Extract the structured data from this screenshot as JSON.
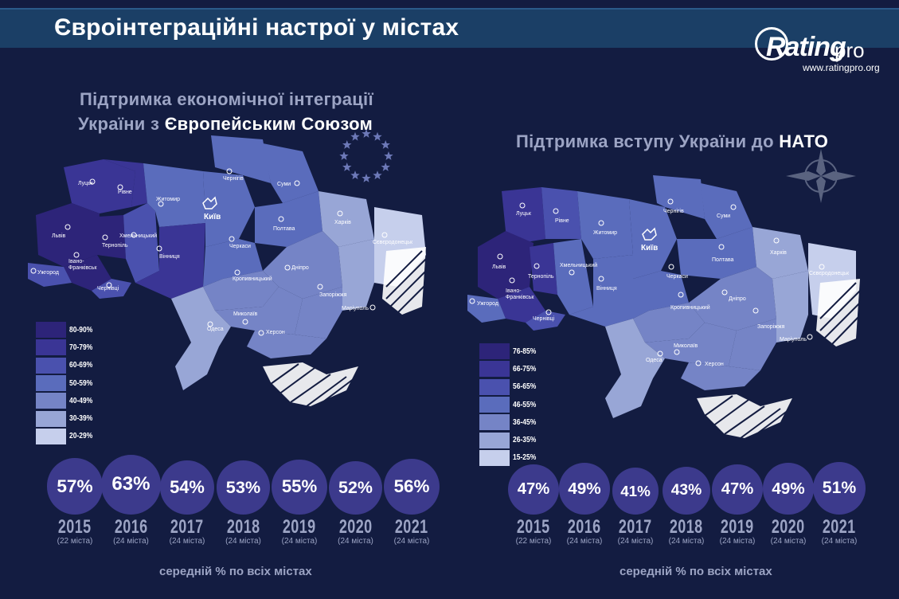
{
  "header": {
    "title": "Євроінтеграційні настрої у містах"
  },
  "logo": {
    "brand": "Rating",
    "brand_suffix": "pro",
    "url": "www.ratingpro.org"
  },
  "left": {
    "title_line1": "Підтримка економічної інтеграції",
    "title_line2_prefix": "України з ",
    "title_line2_highlight": "Європейським Союзом",
    "legend": [
      {
        "label": "80-90%",
        "color": "#2d2479"
      },
      {
        "label": "70-79%",
        "color": "#3a3595"
      },
      {
        "label": "60-69%",
        "color": "#4a51ae"
      },
      {
        "label": "50-59%",
        "color": "#5a6cbc"
      },
      {
        "label": "40-49%",
        "color": "#7584c6"
      },
      {
        "label": "30-39%",
        "color": "#98a6d6"
      },
      {
        "label": "20-29%",
        "color": "#c6cfec"
      }
    ],
    "cities": {
      "lutsk": "Луцьк",
      "rivne": "Рівне",
      "lviv": "Львів",
      "ternopil": "Тернопіль",
      "ivano": "Івано-",
      "ivano2": "Франківськ",
      "uzhgorod": "Ужгород",
      "chernivtsi": "Чернівці",
      "khmelnytskyi": "Хмельницький",
      "vinnytsia": "Вінниця",
      "zhytomyr": "Житомир",
      "kyiv": "Київ",
      "chernihiv": "Чернігів",
      "sumy": "Суми",
      "poltava": "Полтава",
      "kharkiv": "Харків",
      "sievierodonetsk": "Сєвєродонецьк",
      "cherkasy": "Черкаси",
      "kropyvnytskyi": "Кропивницький",
      "dnipro": "Дніпро",
      "zaporizhzhia": "Запоріжжя",
      "mariupol": "Маріуполь",
      "odesa": "Одеса",
      "mykolaiv": "Миколаїв",
      "kherson": "Херсон"
    },
    "bubbles": [
      {
        "value": "57%",
        "year": "2015",
        "sub": "(22 міста)",
        "v": 57
      },
      {
        "value": "63%",
        "year": "2016",
        "sub": "(24 міста)",
        "v": 63
      },
      {
        "value": "54%",
        "year": "2017",
        "sub": "(24 міста)",
        "v": 54
      },
      {
        "value": "53%",
        "year": "2018",
        "sub": "(24 міста)",
        "v": 53
      },
      {
        "value": "55%",
        "year": "2019",
        "sub": "(24 міста)",
        "v": 55
      },
      {
        "value": "52%",
        "year": "2020",
        "sub": "(24 міста)",
        "v": 52
      },
      {
        "value": "56%",
        "year": "2021",
        "sub": "(24 міста)",
        "v": 56
      }
    ],
    "avg_label": "середній % по всіх містах"
  },
  "right": {
    "title_prefix": "Підтримка вступу України до ",
    "title_highlight": "НАТО",
    "legend": [
      {
        "label": "76-85%",
        "color": "#2d2479"
      },
      {
        "label": "66-75%",
        "color": "#3a3595"
      },
      {
        "label": "56-65%",
        "color": "#4a51ae"
      },
      {
        "label": "46-55%",
        "color": "#5a6cbc"
      },
      {
        "label": "36-45%",
        "color": "#7584c6"
      },
      {
        "label": "26-35%",
        "color": "#98a6d6"
      },
      {
        "label": "15-25%",
        "color": "#c6cfec"
      }
    ],
    "bubbles": [
      {
        "value": "47%",
        "year": "2015",
        "sub": "(22 міста)",
        "v": 47
      },
      {
        "value": "49%",
        "year": "2016",
        "sub": "(24 міста)",
        "v": 49
      },
      {
        "value": "41%",
        "year": "2017",
        "sub": "(24 міста)",
        "v": 41
      },
      {
        "value": "43%",
        "year": "2018",
        "sub": "(24 міста)",
        "v": 43
      },
      {
        "value": "47%",
        "year": "2019",
        "sub": "(24 міста)",
        "v": 47
      },
      {
        "value": "49%",
        "year": "2020",
        "sub": "(24 міста)",
        "v": 49
      },
      {
        "value": "51%",
        "year": "2021",
        "sub": "(24 міста)",
        "v": 51
      }
    ],
    "avg_label": "середній % по всіх містах"
  }
}
